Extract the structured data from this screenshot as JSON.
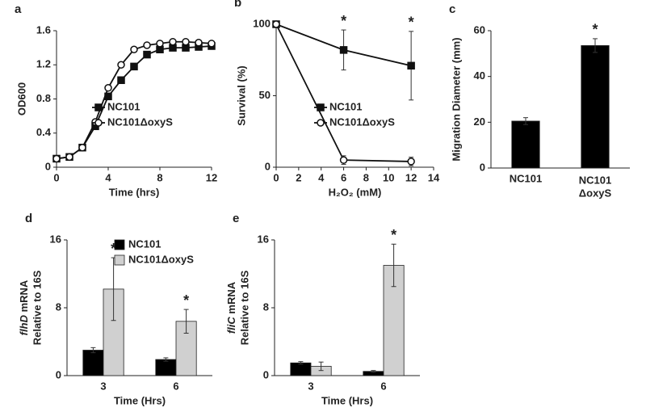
{
  "chart_data": [
    {
      "type": "line",
      "panel": "a",
      "x_label": "Time (hrs)",
      "y_label": "OD600",
      "x": [
        0,
        1,
        2,
        3,
        4,
        5,
        6,
        7,
        8,
        9,
        10,
        11,
        12
      ],
      "xlim": [
        0,
        12
      ],
      "xticks": [
        0,
        4,
        8,
        12
      ],
      "ylim": [
        0,
        1.6
      ],
      "yticks": [
        0,
        0.4,
        0.8,
        1.2,
        1.6
      ],
      "legend": "lower right",
      "series": [
        {
          "name": "NC101",
          "color": "#111111",
          "marker": "square",
          "values": [
            0.1,
            0.12,
            0.23,
            0.48,
            0.83,
            1.02,
            1.18,
            1.32,
            1.38,
            1.4,
            1.4,
            1.41,
            1.42
          ]
        },
        {
          "name": "NC101ΔoxyS",
          "color": "#111111",
          "marker": "circle-open",
          "values": [
            0.1,
            0.12,
            0.23,
            0.53,
            0.93,
            1.2,
            1.38,
            1.43,
            1.45,
            1.47,
            1.47,
            1.46,
            1.45
          ]
        }
      ]
    },
    {
      "type": "line",
      "panel": "b",
      "x_label": "H₂O₂ (mM)",
      "y_label": "Survival (%)",
      "x": [
        0,
        6,
        12
      ],
      "xlim": [
        0,
        14
      ],
      "xticks": [
        0,
        2,
        4,
        6,
        8,
        10,
        12,
        14
      ],
      "ylim": [
        0,
        100
      ],
      "yticks": [
        0,
        50,
        100
      ],
      "legend": "lower right",
      "series": [
        {
          "name": "NC101",
          "color": "#111111",
          "marker": "square",
          "values": [
            100,
            82,
            71
          ],
          "errors": [
            0,
            14,
            24
          ],
          "value_annotations": [
            null,
            "*",
            "*"
          ]
        },
        {
          "name": "NC101ΔoxyS",
          "color": "#111111",
          "marker": "circle-open",
          "values": [
            100,
            5,
            4
          ],
          "errors": [
            0,
            3,
            3
          ]
        }
      ]
    },
    {
      "type": "bar",
      "panel": "c",
      "y_label": "Migration Diameter (mm)",
      "categories": [
        "NC101",
        [
          "NC101",
          "ΔoxyS"
        ]
      ],
      "ylim": [
        0,
        60
      ],
      "yticks": [
        0,
        20,
        40,
        60
      ],
      "series": [
        {
          "color": "#000000",
          "values": [
            20.5,
            53.5
          ],
          "errors": [
            1.5,
            3
          ],
          "value_annotations": [
            null,
            "*"
          ]
        }
      ]
    },
    {
      "type": "bar",
      "panel": "d",
      "x_label": "Time (Hrs)",
      "y_label": {
        "gene": "flhD",
        "rest": "mRNA",
        "line2": "Relative to 16S"
      },
      "categories": [
        "3",
        "6"
      ],
      "ylim": [
        0,
        16
      ],
      "yticks": [
        0,
        8,
        16
      ],
      "legend": "upper right",
      "series": [
        {
          "name": "NC101",
          "color": "#000000",
          "values": [
            3,
            1.9
          ],
          "errors": [
            0.3,
            0.2
          ]
        },
        {
          "name": "NC101ΔoxyS",
          "color": "#d0d0d0",
          "values": [
            10.2,
            6.4
          ],
          "errors": [
            3.7,
            1.4
          ],
          "value_annotations": [
            "*",
            "*"
          ]
        }
      ]
    },
    {
      "type": "bar",
      "panel": "e",
      "x_label": "Time (Hrs)",
      "y_label": {
        "gene": "fliC",
        "rest": "mRNA",
        "line2": "Relative to 16S"
      },
      "categories": [
        "3",
        "6"
      ],
      "ylim": [
        0,
        16
      ],
      "yticks": [
        0,
        8,
        16
      ],
      "series": [
        {
          "color": "#000000",
          "values": [
            1.5,
            0.5
          ],
          "errors": [
            0.15,
            0.1
          ]
        },
        {
          "color": "#d0d0d0",
          "values": [
            1.1,
            13
          ],
          "errors": [
            0.5,
            2.5
          ],
          "value_annotations": [
            null,
            "*"
          ]
        }
      ]
    }
  ]
}
